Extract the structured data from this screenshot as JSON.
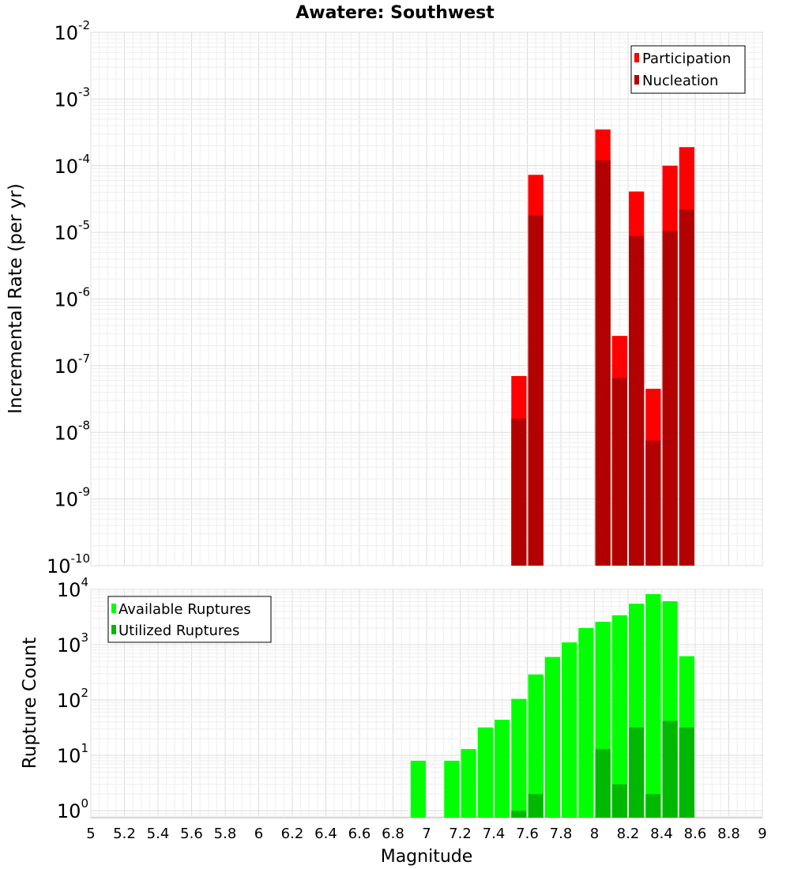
{
  "title": "Awatere: Southwest",
  "xlabel": "Magnitude",
  "x_tick_labels": [
    "5",
    "5.2",
    "5.4",
    "5.6",
    "5.8",
    "6",
    "6.2",
    "6.4",
    "6.6",
    "6.8",
    "7",
    "7.2",
    "7.4",
    "7.6",
    "7.8",
    "8",
    "8.2",
    "8.4",
    "8.6",
    "8.8",
    "9"
  ],
  "chart_data": [
    {
      "type": "bar",
      "panel": "top",
      "ylabel": "Incremental Rate (per yr)",
      "yscale": "log",
      "xlim": [
        5,
        9
      ],
      "ylim": [
        1e-10,
        0.01
      ],
      "y_tick_exponents": [
        "-10",
        "-9",
        "-8",
        "-7",
        "-6",
        "-5",
        "-4",
        "-3",
        "-2"
      ],
      "bin_width": 0.1,
      "legend_position": "top-right",
      "series": [
        {
          "name": "Participation",
          "color": "#ff0000",
          "x": [
            7.55,
            7.65,
            8.05,
            8.15,
            8.25,
            8.35,
            8.45,
            8.55
          ],
          "values": [
            7e-08,
            7.3e-05,
            0.00035,
            2.8e-07,
            4.1e-05,
            4.5e-08,
            0.0001,
            0.00019
          ]
        },
        {
          "name": "Nucleation",
          "color": "#b30000",
          "x": [
            7.55,
            7.65,
            8.05,
            8.15,
            8.25,
            8.35,
            8.45,
            8.55
          ],
          "values": [
            1.6e-08,
            1.8e-05,
            0.00012,
            6.5e-08,
            8.8e-06,
            7.5e-09,
            1.05e-05,
            2.2e-05
          ]
        }
      ]
    },
    {
      "type": "bar",
      "panel": "bottom",
      "ylabel": "Rupture Count",
      "yscale": "log",
      "xlim": [
        5,
        9
      ],
      "ylim": [
        0.75,
        10000
      ],
      "y_tick_exponents": [
        "0",
        "1",
        "2",
        "3",
        "4"
      ],
      "bin_width": 0.1,
      "legend_position": "top-left",
      "series": [
        {
          "name": "Available Ruptures",
          "color": "#00ff00",
          "x": [
            6.95,
            7.15,
            7.25,
            7.35,
            7.45,
            7.55,
            7.65,
            7.75,
            7.85,
            7.95,
            8.05,
            8.15,
            8.25,
            8.35,
            8.45,
            8.55
          ],
          "values": [
            8,
            8,
            13,
            32,
            44,
            105,
            290,
            600,
            1100,
            2000,
            2600,
            3400,
            5500,
            8200,
            6100,
            620
          ]
        },
        {
          "name": "Utilized Ruptures",
          "color": "#00b800",
          "x": [
            7.55,
            7.65,
            8.05,
            8.15,
            8.25,
            8.35,
            8.45,
            8.55
          ],
          "values": [
            1,
            2,
            13,
            3,
            32,
            2,
            42,
            32
          ]
        }
      ]
    }
  ]
}
